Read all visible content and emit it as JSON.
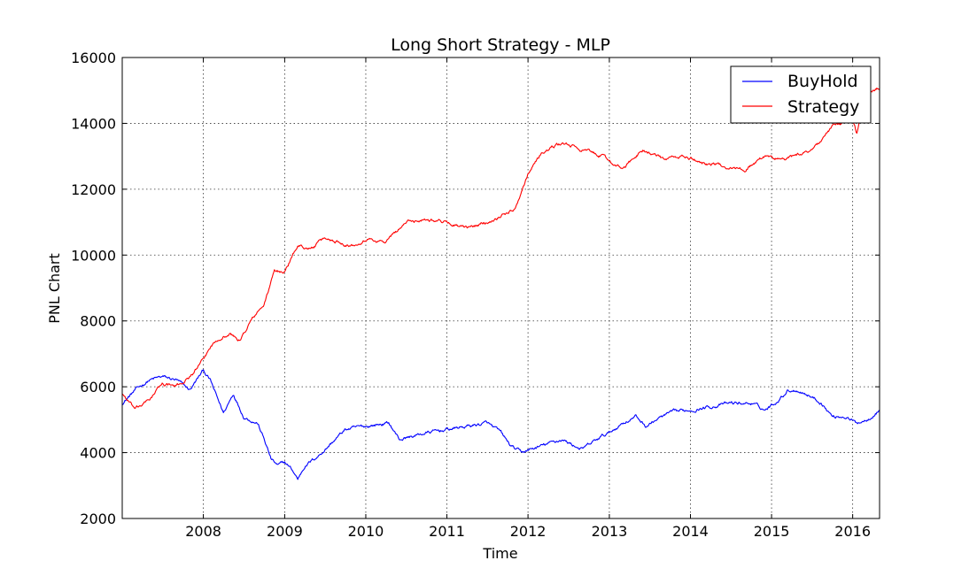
{
  "chart_data": {
    "type": "line",
    "title": "Long Short Strategy - MLP",
    "xlabel": "Time",
    "ylabel": "PNL Chart",
    "xlim": [
      "2007-01-01",
      "2016-05-01"
    ],
    "ylim": [
      2000,
      16000
    ],
    "x_ticks": [
      "2008",
      "2009",
      "2010",
      "2011",
      "2012",
      "2013",
      "2014",
      "2015",
      "2016"
    ],
    "y_ticks": [
      2000,
      4000,
      6000,
      8000,
      10000,
      12000,
      14000,
      16000
    ],
    "grid": true,
    "legend_position": "top-right",
    "series": [
      {
        "name": "BuyHold",
        "color": "#0000ff",
        "x": [
          "2007-01-01",
          "2007-03-01",
          "2007-05-01",
          "2007-07-01",
          "2007-09-01",
          "2007-11-01",
          "2008-01-01",
          "2008-02-01",
          "2008-03-01",
          "2008-04-01",
          "2008-05-15",
          "2008-07-01",
          "2008-09-01",
          "2008-10-01",
          "2008-11-01",
          "2008-12-01",
          "2009-01-01",
          "2009-02-01",
          "2009-03-01",
          "2009-04-01",
          "2009-06-01",
          "2009-08-01",
          "2009-10-01",
          "2010-01-01",
          "2010-04-15",
          "2010-06-01",
          "2010-08-01",
          "2010-10-01",
          "2011-01-01",
          "2011-04-01",
          "2011-07-01",
          "2011-09-01",
          "2011-10-15",
          "2011-12-01",
          "2012-03-01",
          "2012-06-01",
          "2012-09-01",
          "2012-12-01",
          "2013-01-01",
          "2013-03-01",
          "2013-05-01",
          "2013-06-15",
          "2013-08-01",
          "2013-10-01",
          "2014-01-01",
          "2014-04-01",
          "2014-07-01",
          "2014-10-01",
          "2014-12-01",
          "2015-01-15",
          "2015-03-15",
          "2015-05-01",
          "2015-07-01",
          "2015-08-15",
          "2015-10-01",
          "2015-12-01",
          "2016-01-15",
          "2016-03-01",
          "2016-05-01"
        ],
        "y": [
          5500,
          5900,
          6200,
          6300,
          6200,
          5900,
          6500,
          6200,
          5700,
          5200,
          5800,
          5100,
          4900,
          4400,
          3800,
          3600,
          3700,
          3500,
          3200,
          3600,
          3900,
          4300,
          4700,
          4800,
          4900,
          4400,
          4500,
          4600,
          4700,
          4800,
          4900,
          4600,
          4200,
          4000,
          4200,
          4400,
          4100,
          4500,
          4600,
          4900,
          5100,
          4800,
          5000,
          5200,
          5300,
          5400,
          5500,
          5500,
          5300,
          5500,
          5900,
          5900,
          5700,
          5500,
          5100,
          5100,
          4900,
          5000,
          5300
        ]
      },
      {
        "name": "Strategy",
        "color": "#ff0000",
        "x": [
          "2007-01-01",
          "2007-03-01",
          "2007-05-01",
          "2007-07-01",
          "2007-09-01",
          "2007-11-01",
          "2008-01-01",
          "2008-02-01",
          "2008-03-15",
          "2008-05-01",
          "2008-06-15",
          "2008-08-01",
          "2008-10-01",
          "2008-11-15",
          "2009-01-01",
          "2009-03-01",
          "2009-05-01",
          "2009-07-01",
          "2009-09-01",
          "2009-11-01",
          "2010-01-01",
          "2010-04-01",
          "2010-07-01",
          "2010-10-01",
          "2011-01-01",
          "2011-04-01",
          "2011-07-01",
          "2011-09-01",
          "2011-11-01",
          "2012-01-01",
          "2012-03-01",
          "2012-06-01",
          "2012-09-01",
          "2012-12-01",
          "2013-03-01",
          "2013-06-01",
          "2013-09-01",
          "2013-12-01",
          "2014-03-01",
          "2014-06-01",
          "2014-09-01",
          "2014-12-01",
          "2015-03-01",
          "2015-06-01",
          "2015-08-01",
          "2015-10-01",
          "2015-12-01",
          "2016-01-01",
          "2016-01-20",
          "2016-03-01",
          "2016-05-01"
        ],
        "y": [
          5800,
          5300,
          5600,
          6100,
          6000,
          6300,
          6800,
          7200,
          7500,
          7600,
          7400,
          8000,
          8500,
          9500,
          9500,
          10300,
          10200,
          10500,
          10400,
          10300,
          10500,
          10400,
          11000,
          11100,
          11000,
          10800,
          11000,
          11200,
          11400,
          12500,
          13100,
          13400,
          13200,
          13000,
          12600,
          13200,
          12900,
          13000,
          12800,
          12700,
          12600,
          13000,
          12900,
          13100,
          13400,
          13900,
          14000,
          14100,
          13700,
          14900,
          15100
        ]
      }
    ]
  }
}
